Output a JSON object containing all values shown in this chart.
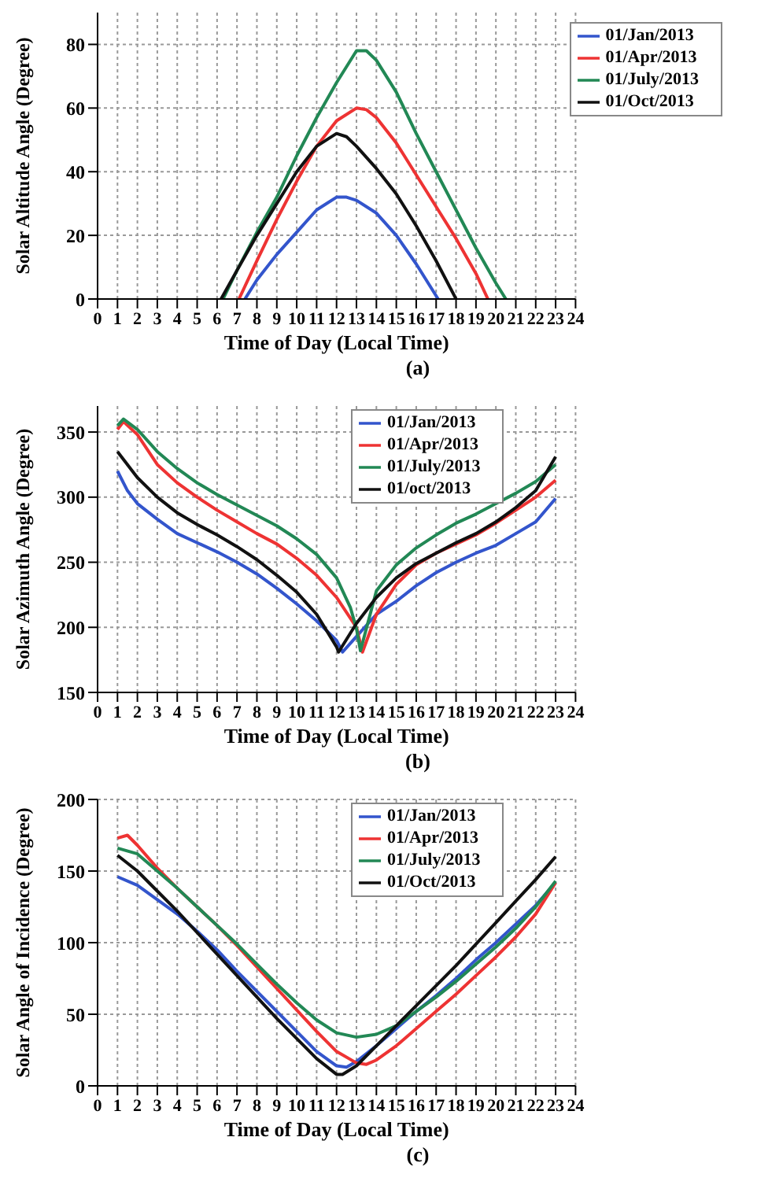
{
  "chart_data": [
    {
      "type": "line",
      "xlabel": "Time of Day (Local Time)",
      "ylabel": "Solar Altitude Angle (Degree)",
      "annotations": [
        "(a)"
      ],
      "xlim": [
        0,
        24
      ],
      "xticks": [
        0,
        1,
        2,
        3,
        4,
        5,
        6,
        7,
        8,
        9,
        10,
        11,
        12,
        13,
        14,
        15,
        16,
        17,
        18,
        19,
        20,
        21,
        22,
        23,
        24
      ],
      "ylim": [
        0,
        90
      ],
      "yticks": [
        0,
        20,
        40,
        60,
        80
      ],
      "grid": true,
      "legend": "top right",
      "series": [
        {
          "name": "01/Jan/2013",
          "color": "#3355cc",
          "x": [
            7.4,
            8,
            9,
            10,
            11,
            12,
            12.5,
            13,
            14,
            15,
            16,
            17.1
          ],
          "values": [
            0,
            6,
            14,
            21,
            28,
            32,
            32,
            31,
            27,
            20,
            11,
            0
          ]
        },
        {
          "name": "01/Apr/2013",
          "color": "#ee3333",
          "x": [
            7.1,
            8,
            9,
            10,
            11,
            12,
            13,
            13.5,
            14,
            15,
            16,
            17,
            18,
            19,
            19.6
          ],
          "values": [
            0,
            12,
            25,
            37,
            48,
            56,
            60,
            59.5,
            57,
            49,
            39,
            29,
            19,
            8,
            0
          ]
        },
        {
          "name": "01/July/2013",
          "color": "#228855",
          "x": [
            6.3,
            7,
            8,
            9,
            10,
            11,
            12,
            13,
            13.5,
            14,
            15,
            16,
            17,
            18,
            19,
            20,
            20.5
          ],
          "values": [
            0,
            9,
            21,
            32,
            45,
            57,
            68,
            78,
            78,
            75,
            65,
            52,
            40,
            28,
            16,
            5,
            0
          ]
        },
        {
          "name": "01/Oct/2013",
          "color": "#111111",
          "x": [
            6.2,
            7,
            8,
            9,
            10,
            11,
            12,
            12.5,
            13,
            14,
            15,
            16,
            17,
            18
          ],
          "values": [
            0,
            9,
            20,
            30,
            40,
            48,
            52,
            51,
            48,
            41,
            33,
            23,
            12,
            0
          ]
        }
      ]
    },
    {
      "type": "line",
      "xlabel": "Time of Day (Local Time)",
      "ylabel": "Solar Azimuth Angle (Degree)",
      "annotations": [
        "(b)"
      ],
      "xlim": [
        0,
        24
      ],
      "xticks": [
        0,
        1,
        2,
        3,
        4,
        5,
        6,
        7,
        8,
        9,
        10,
        11,
        12,
        13,
        14,
        15,
        16,
        17,
        18,
        19,
        20,
        21,
        22,
        23,
        24
      ],
      "ylim": [
        150,
        370
      ],
      "yticks": [
        150,
        200,
        250,
        300,
        350
      ],
      "grid": true,
      "legend": "top",
      "series": [
        {
          "name": "01/Jan/2013",
          "color": "#3355cc",
          "x": [
            1,
            1.5,
            2,
            3,
            4,
            5,
            6,
            7,
            8,
            9,
            10,
            11,
            12,
            12.3,
            13,
            14,
            15,
            16,
            17,
            18,
            19,
            20,
            21,
            22,
            23
          ],
          "values": [
            320,
            305,
            295,
            283,
            272,
            265,
            258,
            250,
            241,
            230,
            218,
            205,
            190,
            181,
            193,
            210,
            220,
            232,
            242,
            250,
            257,
            263,
            272,
            281,
            299
          ]
        },
        {
          "name": "01/Apr/2013",
          "color": "#ee3333",
          "x": [
            1,
            1.3,
            2,
            3,
            4,
            5,
            6,
            7,
            8,
            9,
            10,
            11,
            12,
            13,
            13.3,
            14,
            15,
            16,
            17,
            18,
            19,
            20,
            21,
            22,
            23
          ],
          "values": [
            352,
            358,
            348,
            325,
            311,
            300,
            290,
            281,
            272,
            264,
            253,
            240,
            223,
            200,
            181,
            210,
            233,
            248,
            257,
            264,
            271,
            280,
            290,
            300,
            313
          ]
        },
        {
          "name": "01/July/2013",
          "color": "#228855",
          "x": [
            1,
            1.3,
            2,
            3,
            4,
            5,
            6,
            7,
            8,
            9,
            10,
            11,
            12,
            12.7,
            13,
            13.2,
            13.6,
            14,
            15,
            16,
            17,
            18,
            19,
            20,
            21,
            22,
            23
          ],
          "values": [
            355,
            360,
            352,
            335,
            322,
            311,
            302,
            294,
            286,
            278,
            268,
            256,
            238,
            215,
            199,
            182,
            205,
            228,
            248,
            261,
            271,
            280,
            287,
            295,
            303,
            312,
            325
          ]
        },
        {
          "name": "01/oct/2013",
          "color": "#111111",
          "x": [
            1,
            2,
            3,
            4,
            5,
            6,
            7,
            8,
            9,
            10,
            11,
            12,
            12.1,
            13,
            14,
            15,
            16,
            17,
            18,
            19,
            20,
            21,
            22,
            23
          ],
          "values": [
            335,
            315,
            300,
            288,
            279,
            271,
            262,
            252,
            240,
            227,
            210,
            185,
            181,
            203,
            223,
            238,
            249,
            257,
            265,
            272,
            281,
            292,
            305,
            331
          ]
        }
      ]
    },
    {
      "type": "line",
      "xlabel": "Time of Day (Local Time)",
      "ylabel": "Solar Angle of Incidence (Degree)",
      "annotations": [
        "(c)"
      ],
      "xlim": [
        0,
        24
      ],
      "xticks": [
        0,
        1,
        2,
        3,
        4,
        5,
        6,
        7,
        8,
        9,
        10,
        11,
        12,
        13,
        14,
        15,
        16,
        17,
        18,
        19,
        20,
        21,
        22,
        23,
        24
      ],
      "ylim": [
        0,
        200
      ],
      "yticks": [
        0,
        50,
        100,
        150,
        200
      ],
      "grid": true,
      "legend": "top",
      "series": [
        {
          "name": "01/Jan/2013",
          "color": "#3355cc",
          "x": [
            1,
            2,
            3,
            4,
            5,
            6,
            7,
            8,
            9,
            10,
            11,
            12,
            12.5,
            13,
            14,
            15,
            16,
            17,
            18,
            19,
            20,
            21,
            22,
            23
          ],
          "values": [
            146,
            140,
            130,
            120,
            108,
            95,
            80,
            66,
            52,
            38,
            24,
            14,
            13,
            17,
            28,
            40,
            52,
            63,
            75,
            88,
            100,
            113,
            126,
            142
          ]
        },
        {
          "name": "01/Apr/2013",
          "color": "#ee3333",
          "x": [
            1,
            1.5,
            2,
            3,
            4,
            5,
            6,
            7,
            8,
            9,
            10,
            11,
            12,
            13,
            13.5,
            14,
            15,
            16,
            17,
            18,
            19,
            20,
            21,
            22,
            23
          ],
          "values": [
            173,
            175,
            168,
            152,
            138,
            125,
            112,
            98,
            83,
            68,
            53,
            38,
            24,
            16,
            15,
            18,
            28,
            40,
            52,
            64,
            77,
            90,
            104,
            120,
            142
          ]
        },
        {
          "name": "01/July/2013",
          "color": "#228855",
          "x": [
            1,
            2,
            3,
            4,
            5,
            6,
            7,
            8,
            9,
            10,
            11,
            12,
            13,
            14,
            15,
            16,
            17,
            18,
            19,
            20,
            21,
            22,
            23
          ],
          "values": [
            166,
            162,
            150,
            138,
            125,
            112,
            99,
            85,
            71,
            58,
            46,
            37,
            34,
            36,
            42,
            52,
            62,
            73,
            85,
            97,
            110,
            125,
            143
          ]
        },
        {
          "name": "01/Oct/2013",
          "color": "#111111",
          "x": [
            1,
            2,
            3,
            4,
            5,
            6,
            7,
            8,
            9,
            10,
            11,
            12,
            12.3,
            13,
            14,
            15,
            16,
            17,
            18,
            19,
            20,
            21,
            22,
            23
          ],
          "values": [
            161,
            150,
            136,
            122,
            107,
            92,
            77,
            62,
            47,
            33,
            19,
            8,
            8,
            14,
            28,
            42,
            56,
            70,
            84,
            99,
            114,
            129,
            144,
            160
          ]
        }
      ]
    }
  ]
}
